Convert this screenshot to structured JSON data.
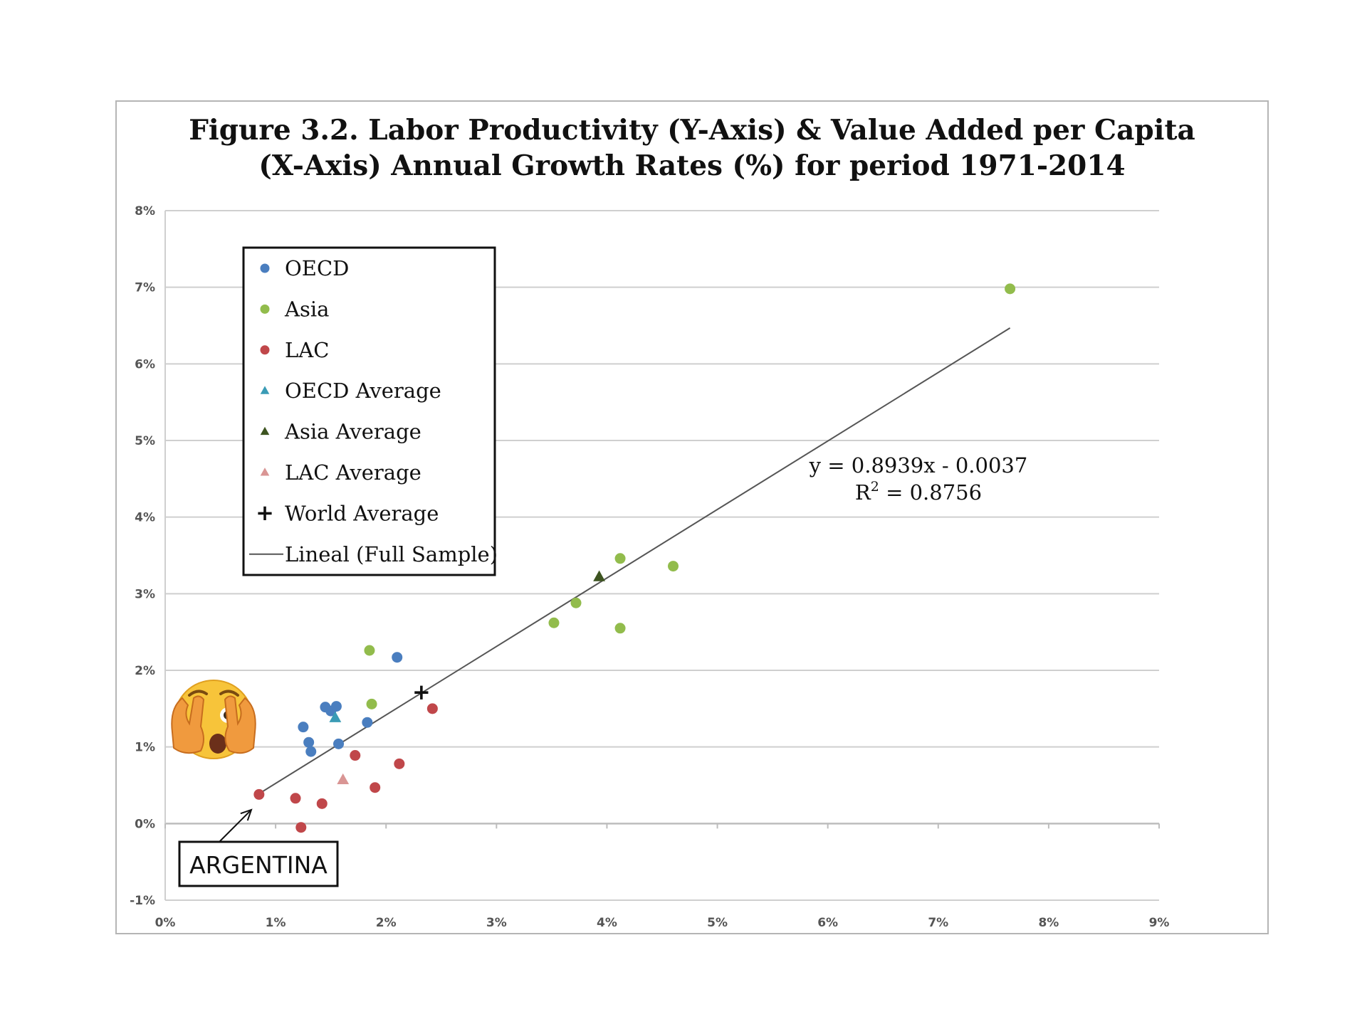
{
  "chart_data": {
    "type": "scatter",
    "title": "Figure 3.2. Labor Productivity (Y-Axis) & Value Added per Capita (X-Axis) Annual Growth Rates (%) for period 1971-2014",
    "title_lines": [
      "Figure 3.2. Labor Productivity (Y-Axis) & Value Added per Capita",
      "(X-Axis) Annual Growth Rates (%) for period 1971-2014"
    ],
    "xlim": [
      0,
      9
    ],
    "ylim": [
      -1,
      8
    ],
    "x_ticks": [
      0,
      1,
      2,
      3,
      4,
      5,
      6,
      7,
      8,
      9
    ],
    "y_ticks": [
      -1,
      0,
      1,
      2,
      3,
      4,
      5,
      6,
      7,
      8
    ],
    "x_tick_labels": [
      "0%",
      "1%",
      "2%",
      "3%",
      "4%",
      "5%",
      "6%",
      "7%",
      "8%",
      "9%"
    ],
    "y_tick_labels": [
      "-1%",
      "0%",
      "1%",
      "2%",
      "3%",
      "4%",
      "5%",
      "6%",
      "7%",
      "8%"
    ],
    "grid": "horizontal",
    "legend_position": "top-left",
    "series": [
      {
        "name": "OECD",
        "marker": "circle",
        "color": "#4a7ebf",
        "points": [
          [
            1.25,
            1.26
          ],
          [
            1.3,
            1.06
          ],
          [
            1.32,
            0.94
          ],
          [
            1.45,
            1.52
          ],
          [
            1.5,
            1.47
          ],
          [
            1.55,
            1.53
          ],
          [
            1.57,
            1.04
          ],
          [
            1.83,
            1.32
          ],
          [
            2.1,
            2.17
          ]
        ]
      },
      {
        "name": "Asia",
        "marker": "circle",
        "color": "#92bc4c",
        "points": [
          [
            1.85,
            2.26
          ],
          [
            1.87,
            1.56
          ],
          [
            3.52,
            2.62
          ],
          [
            3.72,
            2.88
          ],
          [
            4.12,
            3.46
          ],
          [
            4.12,
            2.55
          ],
          [
            4.6,
            3.36
          ],
          [
            7.65,
            6.98
          ]
        ]
      },
      {
        "name": "LAC",
        "marker": "circle",
        "color": "#c0474a",
        "points": [
          [
            0.85,
            0.38
          ],
          [
            1.18,
            0.33
          ],
          [
            1.23,
            -0.05
          ],
          [
            1.42,
            0.26
          ],
          [
            1.72,
            0.89
          ],
          [
            1.9,
            0.47
          ],
          [
            2.12,
            0.78
          ],
          [
            2.42,
            1.5
          ]
        ]
      },
      {
        "name": "OECD Average",
        "marker": "triangle",
        "color": "#3a9bb5",
        "points": [
          [
            1.54,
            1.38
          ]
        ]
      },
      {
        "name": "Asia Average",
        "marker": "triangle",
        "color": "#3d5420",
        "points": [
          [
            3.93,
            3.22
          ]
        ]
      },
      {
        "name": "LAC Average",
        "marker": "triangle",
        "color": "#d99594",
        "points": [
          [
            1.61,
            0.57
          ]
        ]
      },
      {
        "name": "World Average",
        "marker": "plus",
        "color": "#111111",
        "points": [
          [
            2.32,
            1.71
          ]
        ]
      }
    ],
    "trendline": {
      "name": "Lineal (Full Sample)",
      "color": "#555555",
      "slope": 0.8939,
      "intercept": -0.37,
      "x_range": [
        0.85,
        7.65
      ]
    },
    "equation_text": "y = 0.8939x - 0.0037",
    "r2_prefix": "R",
    "r2_sup": "2",
    "r2_value": " = 0.8756",
    "annotation": {
      "label": "ARGENTINA",
      "target": [
        0.78,
        0.18
      ]
    },
    "decorations": {
      "emoji": "face-with-peeking-eye-icon",
      "emoji_color": "#f7c43a",
      "hands_color": "#f09a3e"
    }
  }
}
